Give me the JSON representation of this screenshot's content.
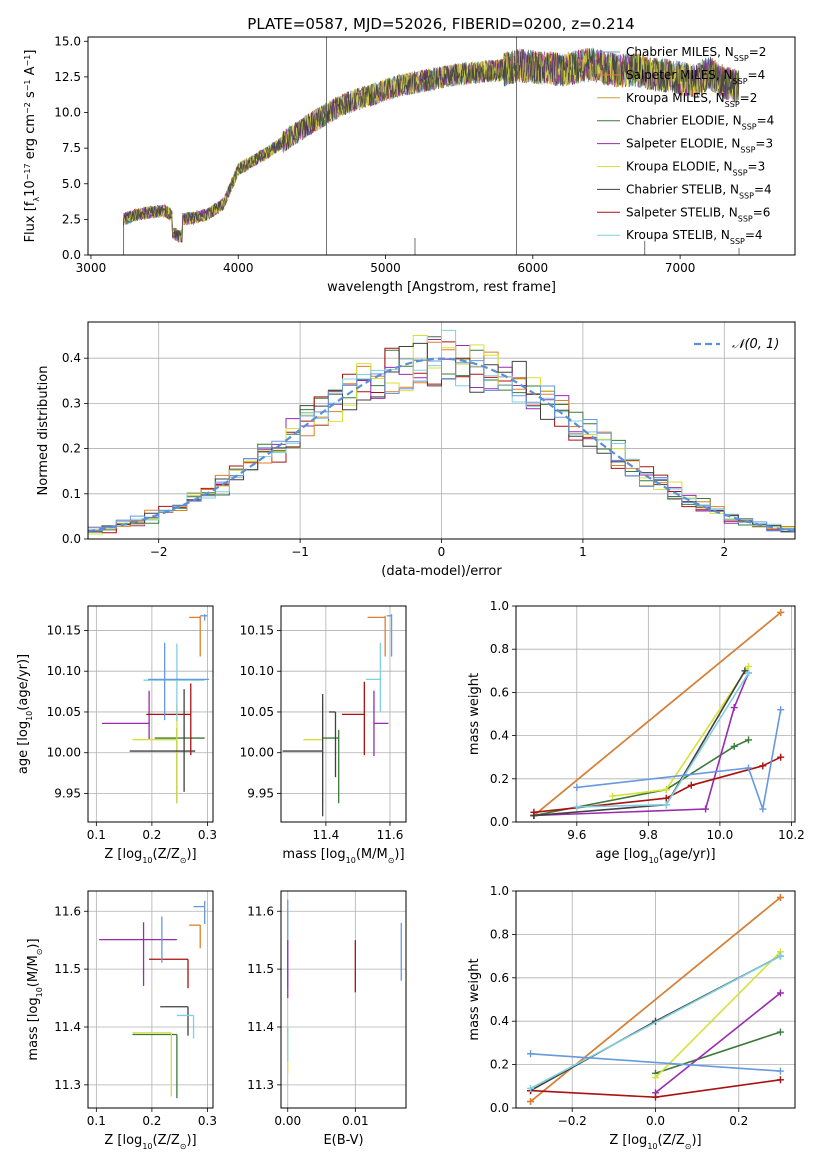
{
  "figure": {
    "title": "PLATE=0587, MJD=52026, FIBERID=0200, z=0.214"
  },
  "colors": [
    "#6699dd",
    "#e07f2a",
    "#c8a040",
    "#3a7a3a",
    "#9a2ab0",
    "#d8e03a",
    "#404040",
    "#aa1111",
    "#80d0e0"
  ],
  "chart_data": [
    {
      "id": "spectrum",
      "type": "line",
      "xlabel": "wavelength [Angstrom, rest frame]",
      "ylabel": "Flux [f_λ10^-17 erg cm^-2 s^-1 A^-1]",
      "xlim": [
        2980,
        7780
      ],
      "ylim": [
        0,
        15.3
      ],
      "xticks": [
        3000,
        4000,
        5000,
        6000,
        7000
      ],
      "yticks": [
        0.0,
        2.5,
        5.0,
        7.5,
        10.0,
        12.5,
        15.0
      ],
      "ytick_labels": [
        "0.0",
        "2.5",
        "5.0",
        "7.5",
        "10.0",
        "12.5",
        "15.0"
      ],
      "legend_position": "top-right",
      "legend": [
        "Chabrier MILES, N_SSP=2",
        "Salpeter MILES, N_SSP=4",
        "Kroupa MILES, N_SSP=2",
        "Chabrier ELODIE, N_SSP=4",
        "Salpeter ELODIE, N_SSP=3",
        "Kroupa ELODIE, N_SSP=3",
        "Chabrier STELIB, N_SSP=4",
        "Salpeter STELIB, N_SSP=6",
        "Kroupa STELIB, N_SSP=4"
      ],
      "continuum": {
        "x": [
          3220,
          3300,
          3400,
          3500,
          3550,
          3600,
          3700,
          3800,
          3900,
          3950,
          4000,
          4100,
          4200,
          4300,
          4400,
          4500,
          4600,
          4700,
          4800,
          4900,
          5000,
          5100,
          5200,
          5300,
          5400,
          5500,
          5600,
          5700,
          5800,
          5900,
          6000,
          6100,
          6200,
          6300,
          6400,
          6500,
          6600,
          6700,
          6800,
          6900,
          7000,
          7100,
          7200,
          7300,
          7400
        ],
        "y": [
          2.5,
          2.8,
          3.0,
          3.1,
          2.8,
          2.5,
          2.6,
          2.9,
          3.6,
          4.8,
          6.0,
          6.6,
          7.2,
          7.9,
          8.6,
          9.3,
          9.9,
          10.5,
          10.9,
          11.2,
          11.6,
          11.9,
          12.1,
          12.3,
          12.5,
          12.7,
          12.8,
          12.9,
          13.0,
          13.3,
          13.2,
          13.1,
          13.0,
          13.2,
          13.4,
          13.1,
          12.9,
          13.0,
          12.7,
          12.6,
          12.4,
          12.2,
          12.8,
          12.1,
          11.8
        ]
      }
    },
    {
      "id": "residuals",
      "type": "line",
      "xlabel": "(data-model)/error",
      "ylabel": "Normed distribution",
      "xlim": [
        -2.5,
        2.5
      ],
      "ylim": [
        0,
        0.48
      ],
      "xticks": [
        -2,
        -1,
        0,
        1,
        2
      ],
      "xtick_labels": [
        "−2",
        "−1",
        "0",
        "1",
        "2"
      ],
      "yticks": [
        0.0,
        0.1,
        0.2,
        0.3,
        0.4
      ],
      "ytick_labels": [
        "0.0",
        "0.1",
        "0.2",
        "0.3",
        "0.4"
      ],
      "grid": true,
      "legend": [
        "𝒩(0, 1)"
      ],
      "legend_position": "top-right",
      "reference_curve": "normal(0,1)"
    },
    {
      "id": "age-vs-Z",
      "type": "scatter",
      "xlabel": "Z [log10(Z/Z☉)]",
      "ylabel": "age [log10(age/yr)]",
      "xlim": [
        0.085,
        0.31
      ],
      "ylim": [
        9.915,
        10.18
      ],
      "xticks": [
        0.1,
        0.2,
        0.3
      ],
      "xtick_labels": [
        "0.1",
        "0.2",
        "0.3"
      ],
      "yticks": [
        9.95,
        10.0,
        10.05,
        10.1,
        10.15
      ],
      "ytick_labels": [
        "9.95",
        "10.00",
        "10.05",
        "10.10",
        "10.15"
      ],
      "grid": true,
      "points": [
        {
          "x": 0.295,
          "y": 10.168,
          "xerr": [
            0.008,
            0.005
          ],
          "yerr": [
            0.006,
            0.002
          ],
          "c": 0
        },
        {
          "x": 0.287,
          "y": 10.166,
          "xerr": [
            0.02,
            0.0
          ],
          "yerr": [
            0.048,
            0.002
          ],
          "c": 1
        },
        {
          "x": 0.245,
          "y": 10.018,
          "xerr": [
            0.04,
            0.05
          ],
          "yerr": [
            0.08,
            0.012
          ],
          "c": 3
        },
        {
          "x": 0.195,
          "y": 10.036,
          "xerr": [
            0.085,
            0.0
          ],
          "yerr": [
            0.02,
            0.04
          ],
          "c": 4
        },
        {
          "x": 0.245,
          "y": 10.016,
          "xerr": [
            0.08,
            0.0
          ],
          "yerr": [
            0.078,
            0.044
          ],
          "c": 5
        },
        {
          "x": 0.258,
          "y": 10.002,
          "xerr": [
            0.098,
            0.02
          ],
          "yerr": [
            0.05,
            0.076
          ],
          "c": 6
        },
        {
          "x": 0.27,
          "y": 10.047,
          "xerr": [
            0.08,
            0.0
          ],
          "yerr": [
            0.05,
            0.038
          ],
          "c": 7
        },
        {
          "x": 0.245,
          "y": 10.089,
          "xerr": [
            0.06,
            0.05
          ],
          "yerr": [
            0.05,
            0.045
          ],
          "c": 8
        },
        {
          "x": 0.223,
          "y": 10.09,
          "xerr": [
            0.03,
            0.08
          ],
          "yerr": [
            0.05,
            0.045
          ],
          "c": 9
        }
      ]
    },
    {
      "id": "age-vs-mass",
      "type": "scatter",
      "xlabel": "mass [log10(M/M☉)]",
      "ylabel": "",
      "xlim": [
        11.26,
        11.65
      ],
      "ylim": [
        9.915,
        10.18
      ],
      "xticks": [
        11.4,
        11.6
      ],
      "xtick_labels": [
        "11.4",
        "11.6"
      ],
      "yticks": [
        9.95,
        10.0,
        10.05,
        10.1,
        10.15
      ],
      "ytick_labels": [
        "9.95",
        "10.00",
        "10.05",
        "10.10",
        "10.15"
      ],
      "grid": true,
      "points": [
        {
          "x": 11.605,
          "y": 10.168,
          "xerr": [
            0.015,
            0.0
          ],
          "yerr": [
            0.05,
            0.002
          ],
          "c": 0
        },
        {
          "x": 11.585,
          "y": 10.166,
          "xerr": [
            0.055,
            0.0
          ],
          "yerr": [
            0.048,
            0.002
          ],
          "c": 1
        },
        {
          "x": 11.44,
          "y": 10.018,
          "xerr": [
            0.05,
            0.0
          ],
          "yerr": [
            0.08,
            0.01
          ],
          "c": 3
        },
        {
          "x": 11.55,
          "y": 10.036,
          "xerr": [
            0.0,
            0.045
          ],
          "yerr": [
            0.04,
            0.04
          ],
          "c": 4
        },
        {
          "x": 11.39,
          "y": 10.016,
          "xerr": [
            0.06,
            0.0
          ],
          "yerr": [
            0.08,
            0.045
          ],
          "c": 5
        },
        {
          "x": 11.39,
          "y": 10.002,
          "xerr": [
            0.125,
            0.0
          ],
          "yerr": [
            0.08,
            0.07
          ],
          "c": 6
        },
        {
          "x": 11.52,
          "y": 10.047,
          "xerr": [
            0.07,
            0.0
          ],
          "yerr": [
            0.05,
            0.04
          ],
          "c": 7
        },
        {
          "x": 11.57,
          "y": 10.09,
          "xerr": [
            0.045,
            0.0
          ],
          "yerr": [
            0.04,
            0.045
          ],
          "c": 8
        },
        {
          "x": 11.43,
          "y": 10.05,
          "xerr": [
            0.02,
            0.0
          ],
          "yerr": [
            0.08,
            0.0
          ],
          "c": 6
        }
      ]
    },
    {
      "id": "mass-weight-vs-age",
      "type": "line",
      "xlabel": "age [log10(age/yr)]",
      "ylabel": "mass weight",
      "xlim": [
        9.43,
        10.21
      ],
      "ylim": [
        0,
        1.0
      ],
      "xticks": [
        9.6,
        9.8,
        10.0,
        10.2
      ],
      "xtick_labels": [
        "9.6",
        "9.8",
        "10.0",
        "10.2"
      ],
      "yticks": [
        0.0,
        0.2,
        0.4,
        0.6,
        0.8,
        1.0
      ],
      "ytick_labels": [
        "0.0",
        "0.2",
        "0.4",
        "0.6",
        "0.8",
        "1.0"
      ],
      "grid": true,
      "series": [
        {
          "c": 0,
          "x": [
            9.48,
            10.17
          ],
          "y": [
            0.03,
            0.97
          ]
        },
        {
          "c": 1,
          "x": [
            9.48,
            10.17
          ],
          "y": [
            0.03,
            0.97
          ]
        },
        {
          "c": 3,
          "x": [
            9.48,
            9.85,
            10.04,
            10.08
          ],
          "y": [
            0.03,
            0.15,
            0.35,
            0.38
          ]
        },
        {
          "c": 4,
          "x": [
            9.48,
            9.96,
            10.04,
            10.08
          ],
          "y": [
            0.03,
            0.06,
            0.53,
            0.69
          ]
        },
        {
          "c": 5,
          "x": [
            9.7,
            9.85,
            10.08
          ],
          "y": [
            0.12,
            0.15,
            0.72
          ]
        },
        {
          "c": 6,
          "x": [
            9.48,
            9.85,
            10.07
          ],
          "y": [
            0.03,
            0.08,
            0.7
          ]
        },
        {
          "c": 7,
          "x": [
            9.48,
            9.85,
            9.92,
            10.12,
            10.17
          ],
          "y": [
            0.045,
            0.11,
            0.17,
            0.26,
            0.3
          ]
        },
        {
          "c": 8,
          "x": [
            9.6,
            9.85,
            10.08
          ],
          "y": [
            0.07,
            0.08,
            0.69
          ]
        },
        {
          "c": 9,
          "x": [
            9.6,
            10.08,
            10.12,
            10.17
          ],
          "y": [
            0.16,
            0.25,
            0.06,
            0.52
          ]
        }
      ]
    },
    {
      "id": "mass-vs-Z",
      "type": "scatter",
      "xlabel": "Z [log10(Z/Z☉)]",
      "ylabel": "mass [log10(M/M☉)]",
      "xlim": [
        0.085,
        0.31
      ],
      "ylim": [
        11.26,
        11.635
      ],
      "xticks": [
        0.1,
        0.2,
        0.3
      ],
      "xtick_labels": [
        "0.1",
        "0.2",
        "0.3"
      ],
      "yticks": [
        11.3,
        11.4,
        11.5,
        11.6
      ],
      "ytick_labels": [
        "11.3",
        "11.4",
        "11.5",
        "11.6"
      ],
      "grid": true,
      "points": [
        {
          "x": 0.295,
          "y": 11.608,
          "xerr": [
            0.02,
            0.0
          ],
          "yerr": [
            0.03,
            0.01
          ],
          "c": 0
        },
        {
          "x": 0.287,
          "y": 11.576,
          "xerr": [
            0.02,
            0.0
          ],
          "yerr": [
            0.04,
            0.0
          ],
          "c": 1
        },
        {
          "x": 0.245,
          "y": 11.387,
          "xerr": [
            0.08,
            0.0
          ],
          "yerr": [
            0.11,
            0.0
          ],
          "c": 3
        },
        {
          "x": 0.185,
          "y": 11.551,
          "xerr": [
            0.08,
            0.06
          ],
          "yerr": [
            0.08,
            0.03
          ],
          "c": 4
        },
        {
          "x": 0.235,
          "y": 11.39,
          "xerr": [
            0.07,
            0.0
          ],
          "yerr": [
            0.11,
            0.0
          ],
          "c": 5
        },
        {
          "x": 0.265,
          "y": 11.435,
          "xerr": [
            0.05,
            0.0
          ],
          "yerr": [
            0.05,
            0.0
          ],
          "c": 6
        },
        {
          "x": 0.265,
          "y": 11.517,
          "xerr": [
            0.07,
            0.0
          ],
          "yerr": [
            0.05,
            0.0
          ],
          "c": 7
        },
        {
          "x": 0.275,
          "y": 11.42,
          "xerr": [
            0.03,
            0.0
          ],
          "yerr": [
            0.04,
            0.0
          ],
          "c": 8
        },
        {
          "x": 0.218,
          "y": 11.551,
          "xerr": [
            0.0,
            0.0
          ],
          "yerr": [
            0.04,
            0.04
          ],
          "c": 9
        }
      ]
    },
    {
      "id": "mass-vs-ebv",
      "type": "scatter",
      "xlabel": "E(B-V)",
      "ylabel": "",
      "xlim": [
        -0.001,
        0.0175
      ],
      "ylim": [
        11.26,
        11.635
      ],
      "xticks": [
        0.0,
        0.01
      ],
      "xtick_labels": [
        "0.00",
        "0.01"
      ],
      "yticks": [
        11.3,
        11.4,
        11.5,
        11.6
      ],
      "ytick_labels": [
        "11.3",
        "11.4",
        "11.5",
        "11.6"
      ],
      "grid": true,
      "points": [
        {
          "x": 0.0,
          "y": 11.55,
          "xerr": [
            0,
            0
          ],
          "yerr": [
            0.08,
            0.07
          ],
          "c": 0
        },
        {
          "x": 0.0,
          "y": 11.4,
          "xerr": [
            0,
            0
          ],
          "yerr": [
            0.08,
            0.0
          ],
          "c": 5
        },
        {
          "x": 0.0,
          "y": 11.47,
          "xerr": [
            0,
            0
          ],
          "yerr": [
            0.02,
            0.08
          ],
          "c": 4
        },
        {
          "x": 0.0,
          "y": 11.4,
          "xerr": [
            0,
            0
          ],
          "yerr": [
            0.06,
            0.0
          ],
          "c": 8
        },
        {
          "x": 0.01,
          "y": 11.52,
          "xerr": [
            0,
            0
          ],
          "yerr": [
            0.06,
            0.03
          ],
          "c": 7
        },
        {
          "x": 0.0168,
          "y": 11.53,
          "xerr": [
            0,
            0
          ],
          "yerr": [
            0.05,
            0.05
          ],
          "c": 9
        }
      ]
    },
    {
      "id": "mass-weight-vs-Z",
      "type": "line",
      "xlabel": "Z [log10(Z/Z☉)]",
      "ylabel": "mass weight",
      "xlim": [
        -0.335,
        0.335
      ],
      "ylim": [
        0,
        1.0
      ],
      "xticks": [
        -0.2,
        0.0,
        0.2
      ],
      "xtick_labels": [
        "−0.2",
        "0.0",
        "0.2"
      ],
      "yticks": [
        0.0,
        0.2,
        0.4,
        0.6,
        0.8,
        1.0
      ],
      "ytick_labels": [
        "0.0",
        "0.2",
        "0.4",
        "0.6",
        "0.8",
        "1.0"
      ],
      "grid": true,
      "series": [
        {
          "c": 0,
          "x": [
            -0.3,
            0.3
          ],
          "y": [
            0.03,
            0.97
          ]
        },
        {
          "c": 1,
          "x": [
            -0.3,
            0.3
          ],
          "y": [
            0.03,
            0.97
          ]
        },
        {
          "c": 3,
          "x": [
            0.0,
            0.3
          ],
          "y": [
            0.16,
            0.35
          ]
        },
        {
          "c": 4,
          "x": [
            0.0,
            0.3
          ],
          "y": [
            0.07,
            0.53
          ]
        },
        {
          "c": 5,
          "x": [
            0.0,
            0.3
          ],
          "y": [
            0.14,
            0.72
          ]
        },
        {
          "c": 6,
          "x": [
            -0.3,
            0.0,
            0.3
          ],
          "y": [
            0.08,
            0.4,
            0.7
          ]
        },
        {
          "c": 7,
          "x": [
            -0.3,
            0.0,
            0.3
          ],
          "y": [
            0.08,
            0.05,
            0.13
          ]
        },
        {
          "c": 8,
          "x": [
            -0.3,
            0.3
          ],
          "y": [
            0.09,
            0.7
          ]
        },
        {
          "c": 9,
          "x": [
            -0.3,
            0.3
          ],
          "y": [
            0.25,
            0.17
          ]
        }
      ]
    }
  ]
}
